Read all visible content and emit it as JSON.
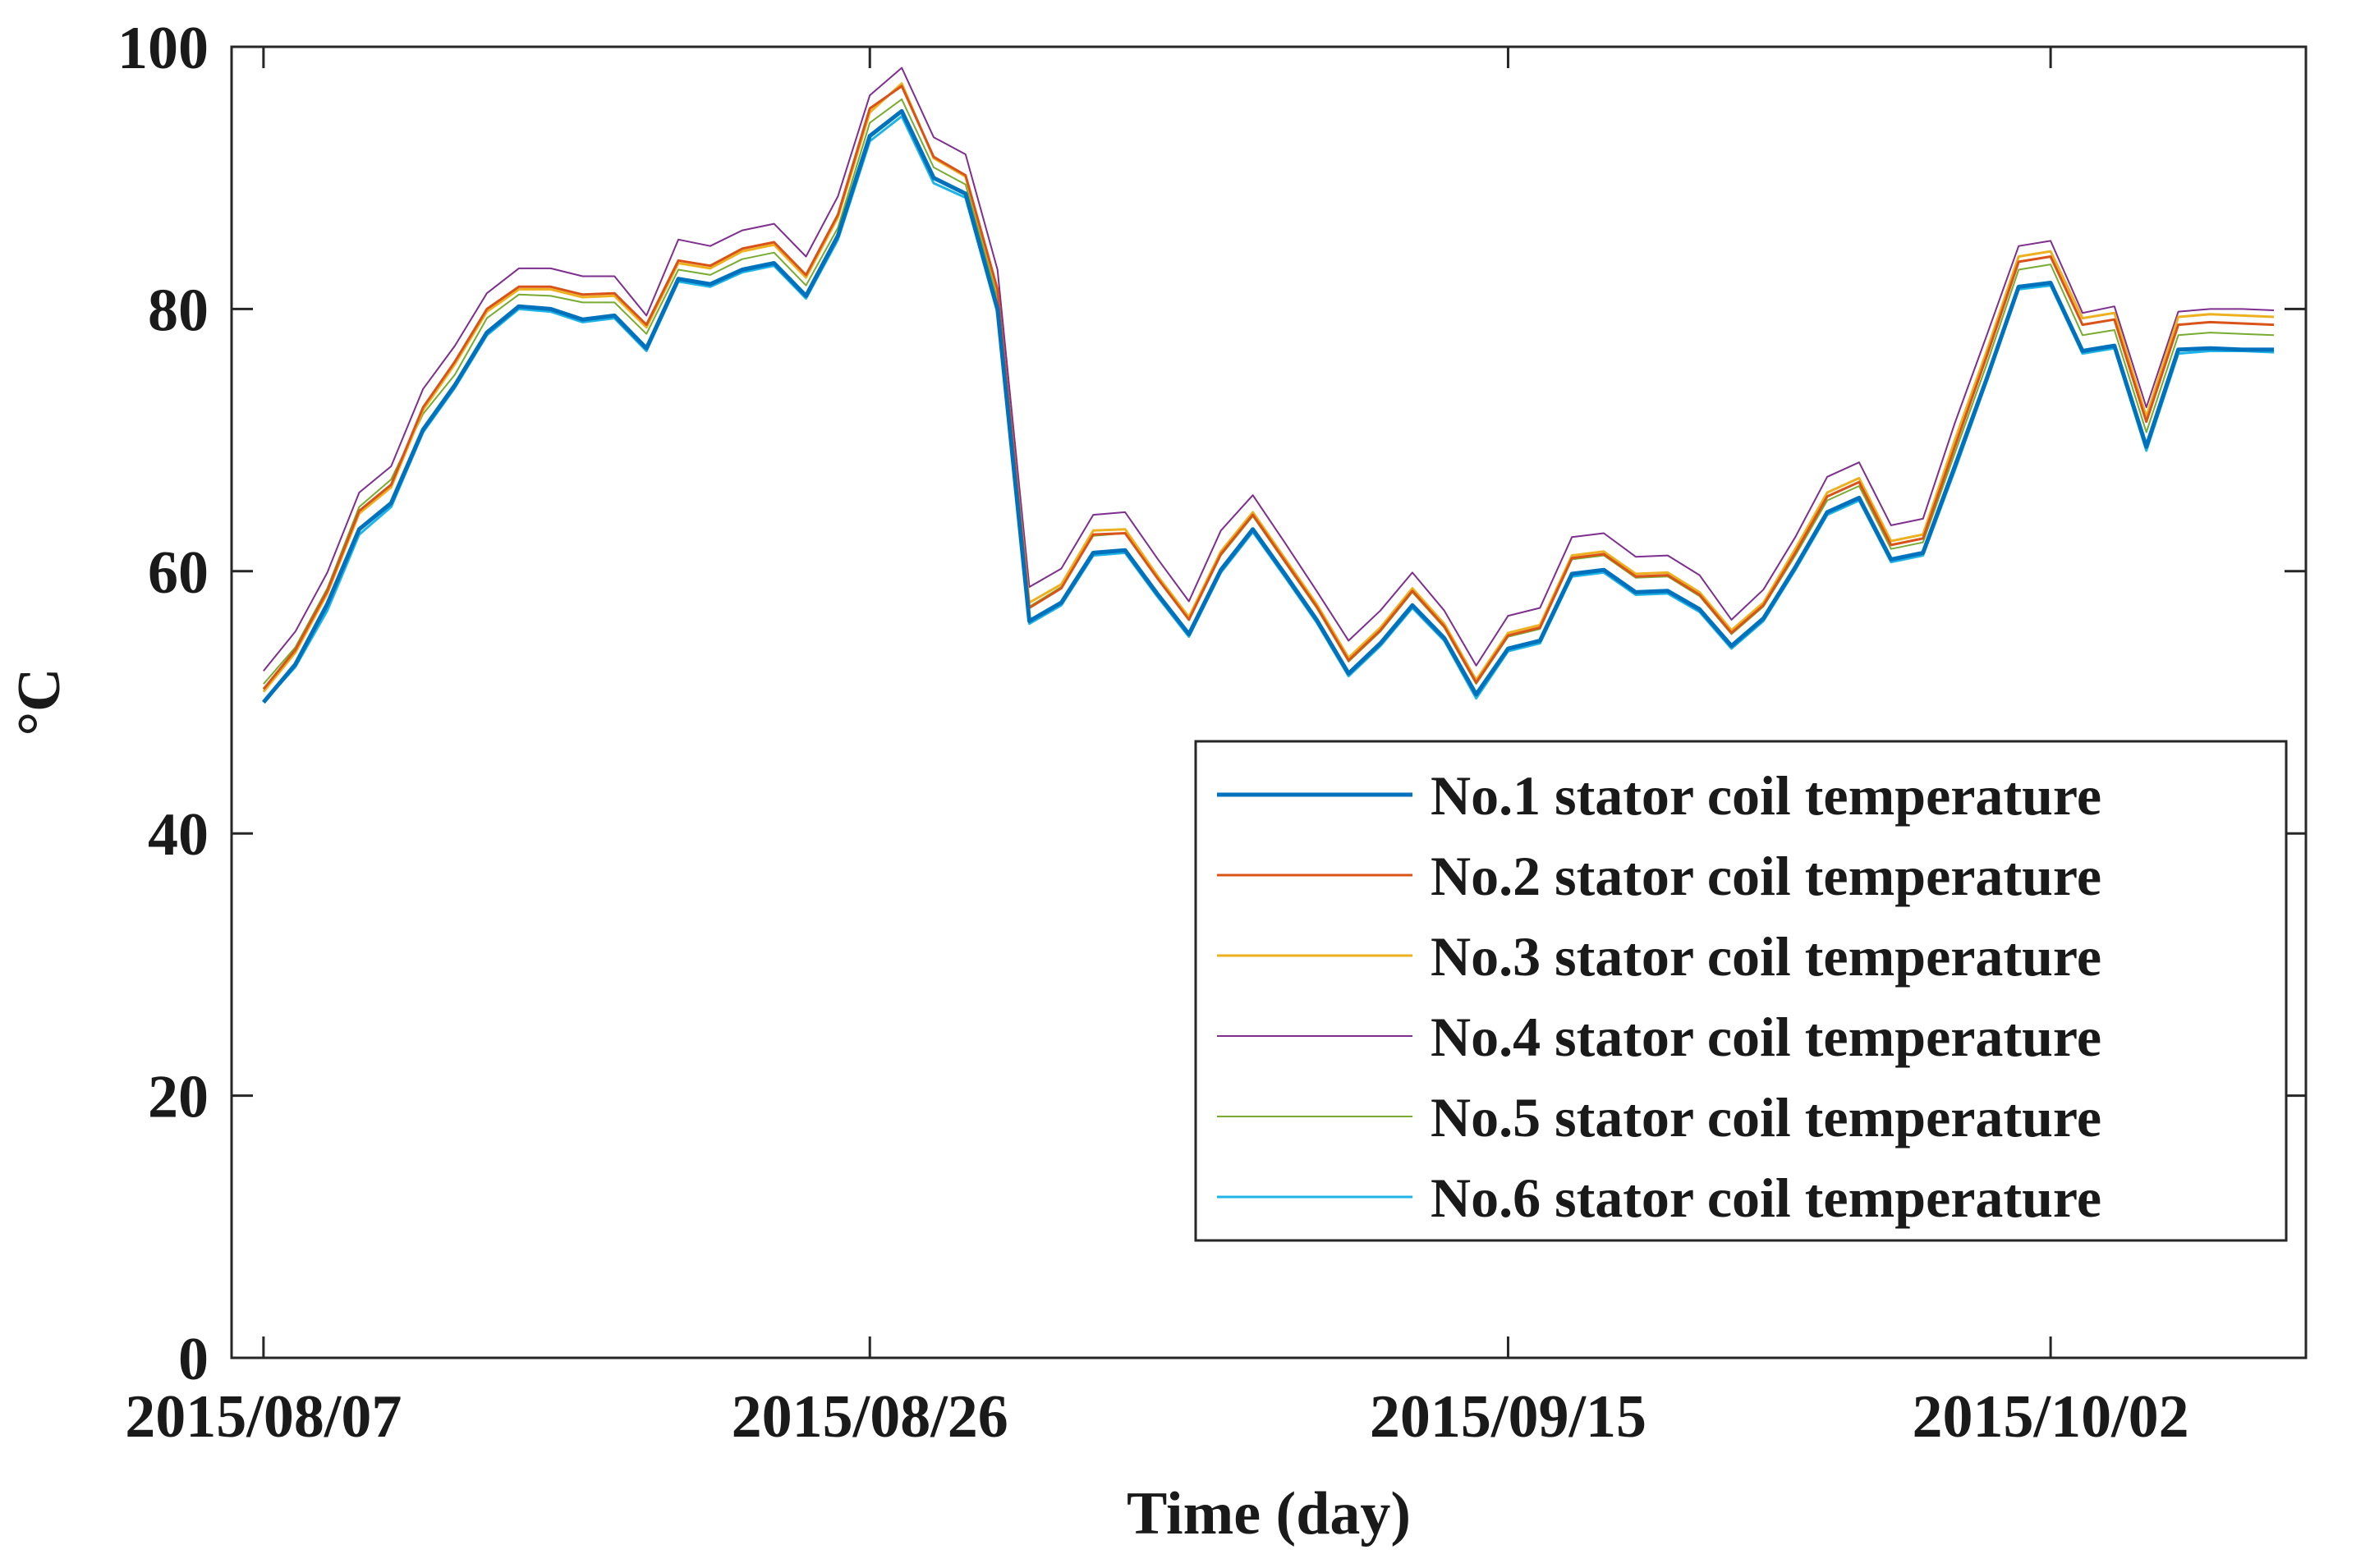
{
  "chart_data": {
    "type": "line",
    "xlabel": "Time (day)",
    "ylabel": "°C",
    "ylim": [
      0,
      100
    ],
    "yticks": [
      0,
      20,
      40,
      60,
      80,
      100
    ],
    "xlim": [
      "2015-08-06",
      "2015-10-10"
    ],
    "xticks": [
      {
        "date": "2015-08-07",
        "label": "2015/08/07"
      },
      {
        "date": "2015-08-26",
        "label": "2015/08/26"
      },
      {
        "date": "2015-09-15",
        "label": "2015/09/15"
      },
      {
        "date": "2015-10-02",
        "label": "2015/10/02"
      }
    ],
    "grid": false,
    "legend_position": "bottom-right",
    "x": [
      "2015-08-07",
      "2015-08-08",
      "2015-08-09",
      "2015-08-10",
      "2015-08-11",
      "2015-08-12",
      "2015-08-13",
      "2015-08-14",
      "2015-08-15",
      "2015-08-16",
      "2015-08-17",
      "2015-08-18",
      "2015-08-19",
      "2015-08-20",
      "2015-08-21",
      "2015-08-22",
      "2015-08-23",
      "2015-08-24",
      "2015-08-25",
      "2015-08-26",
      "2015-08-27",
      "2015-08-28",
      "2015-08-29",
      "2015-08-30",
      "2015-08-31",
      "2015-09-01",
      "2015-09-02",
      "2015-09-03",
      "2015-09-04",
      "2015-09-05",
      "2015-09-06",
      "2015-09-07",
      "2015-09-08",
      "2015-09-09",
      "2015-09-10",
      "2015-09-11",
      "2015-09-12",
      "2015-09-13",
      "2015-09-14",
      "2015-09-15",
      "2015-09-16",
      "2015-09-17",
      "2015-09-18",
      "2015-09-19",
      "2015-09-20",
      "2015-09-21",
      "2015-09-22",
      "2015-09-23",
      "2015-09-24",
      "2015-09-25",
      "2015-09-26",
      "2015-09-27",
      "2015-09-28",
      "2015-09-29",
      "2015-09-30",
      "2015-10-01",
      "2015-10-02",
      "2015-10-03",
      "2015-10-04",
      "2015-10-05",
      "2015-10-06",
      "2015-10-07",
      "2015-10-08",
      "2015-10-09"
    ],
    "series": [
      {
        "name": "No.1 stator coil temperature",
        "color": "#0072BD",
        "width": 5,
        "values": [
          50.0,
          52.9,
          57.5,
          63.2,
          65.2,
          70.8,
          74.2,
          78.2,
          80.2,
          80.0,
          79.2,
          79.5,
          77.0,
          82.3,
          81.9,
          83.0,
          83.5,
          81.0,
          85.6,
          93.2,
          95.1,
          90.0,
          88.8,
          80.0,
          56.2,
          57.6,
          61.4,
          61.6,
          58.3,
          55.2,
          60.1,
          63.2,
          59.8,
          56.3,
          52.2,
          54.5,
          57.4,
          54.9,
          50.6,
          54.1,
          54.7,
          59.8,
          60.1,
          58.4,
          58.5,
          57.1,
          54.3,
          56.4,
          60.3,
          64.5,
          65.6,
          60.9,
          61.4,
          68.0,
          74.7,
          81.7,
          82.0,
          76.8,
          77.2,
          69.5,
          76.9,
          77.0,
          76.9,
          76.9
        ]
      },
      {
        "name": "No.2 stator coil temperature",
        "color": "#D95319",
        "width": 3,
        "values": [
          51.0,
          54.0,
          58.5,
          64.6,
          66.6,
          72.5,
          76.0,
          80.0,
          81.7,
          81.7,
          81.1,
          81.2,
          78.8,
          83.7,
          83.3,
          84.6,
          85.1,
          82.6,
          87.2,
          95.3,
          97.0,
          91.6,
          90.2,
          81.5,
          57.2,
          58.7,
          62.8,
          62.9,
          59.5,
          56.3,
          61.3,
          64.3,
          60.8,
          57.3,
          53.2,
          55.5,
          58.5,
          55.8,
          51.5,
          55.1,
          55.7,
          61.0,
          61.3,
          59.6,
          59.7,
          58.2,
          55.3,
          57.4,
          61.4,
          65.7,
          66.8,
          62.0,
          62.5,
          69.5,
          76.4,
          83.6,
          84.0,
          78.8,
          79.2,
          71.4,
          78.8,
          79.0,
          78.9,
          78.8
        ]
      },
      {
        "name": "No.3 stator coil temperature",
        "color": "#EDB120",
        "width": 3,
        "values": [
          50.8,
          53.8,
          58.3,
          64.4,
          66.4,
          72.3,
          75.8,
          79.8,
          81.5,
          81.5,
          80.9,
          81.0,
          78.6,
          83.5,
          83.1,
          84.4,
          84.9,
          82.4,
          87.0,
          95.0,
          97.2,
          91.5,
          90.1,
          81.3,
          57.6,
          59.0,
          63.1,
          63.2,
          59.7,
          56.5,
          61.5,
          64.5,
          61.0,
          57.5,
          53.4,
          55.7,
          58.7,
          56.0,
          51.7,
          55.3,
          55.9,
          61.2,
          61.5,
          59.8,
          59.9,
          58.4,
          55.5,
          57.6,
          61.7,
          66.0,
          67.1,
          62.3,
          62.8,
          70.0,
          76.8,
          84.0,
          84.4,
          79.3,
          79.7,
          71.8,
          79.4,
          79.6,
          79.5,
          79.4
        ]
      },
      {
        "name": "No.4 stator coil temperature",
        "color": "#7E2F8E",
        "width": 2,
        "values": [
          52.4,
          55.4,
          59.9,
          66.0,
          68.0,
          73.9,
          77.2,
          81.2,
          83.1,
          83.1,
          82.5,
          82.5,
          79.5,
          85.3,
          84.8,
          86.0,
          86.5,
          84.0,
          88.6,
          96.3,
          98.4,
          93.1,
          91.8,
          83.0,
          58.8,
          60.2,
          64.3,
          64.5,
          61.0,
          57.7,
          63.1,
          65.8,
          62.2,
          58.5,
          54.7,
          57.0,
          59.9,
          57.0,
          52.8,
          56.6,
          57.2,
          62.6,
          62.9,
          61.1,
          61.2,
          59.7,
          56.3,
          58.6,
          62.6,
          67.2,
          68.3,
          63.5,
          64.0,
          71.3,
          78.0,
          84.8,
          85.2,
          79.7,
          80.2,
          72.5,
          79.8,
          80.0,
          80.0,
          79.9
        ]
      },
      {
        "name": "No.5 stator coil temperature",
        "color": "#77AC30",
        "width": 2,
        "values": [
          51.4,
          54.2,
          58.7,
          64.9,
          67.0,
          72.0,
          75.0,
          79.3,
          81.1,
          81.0,
          80.5,
          80.5,
          78.1,
          83.0,
          82.6,
          83.8,
          84.3,
          81.8,
          86.2,
          94.2,
          96.0,
          90.8,
          89.5,
          80.8,
          57.3,
          58.8,
          62.7,
          62.9,
          59.6,
          56.3,
          61.2,
          64.2,
          60.7,
          57.2,
          53.1,
          55.4,
          58.4,
          55.7,
          51.4,
          55.0,
          55.6,
          60.9,
          61.2,
          59.5,
          59.6,
          58.1,
          55.2,
          57.3,
          61.2,
          65.4,
          66.5,
          61.7,
          62.2,
          69.0,
          75.8,
          83.0,
          83.4,
          78.0,
          78.4,
          70.6,
          78.0,
          78.2,
          78.1,
          78.0
        ]
      },
      {
        "name": "No.6 stator coil temperature",
        "color": "#1EB4E6",
        "width": 3,
        "values": [
          50.0,
          52.7,
          57.0,
          62.8,
          64.9,
          70.6,
          74.0,
          78.0,
          80.0,
          79.8,
          79.0,
          79.3,
          76.8,
          82.1,
          81.7,
          82.8,
          83.3,
          80.8,
          85.3,
          92.8,
          94.7,
          89.6,
          88.5,
          79.7,
          56.0,
          57.4,
          61.2,
          61.4,
          58.1,
          55.0,
          59.9,
          63.0,
          59.6,
          56.1,
          52.0,
          54.3,
          57.2,
          54.7,
          50.3,
          53.9,
          54.5,
          59.6,
          59.9,
          58.2,
          58.3,
          56.9,
          54.1,
          56.2,
          60.1,
          64.3,
          65.4,
          60.7,
          61.2,
          67.7,
          74.5,
          81.5,
          81.8,
          76.6,
          77.0,
          69.2,
          76.6,
          76.8,
          76.8,
          76.7
        ]
      }
    ]
  }
}
